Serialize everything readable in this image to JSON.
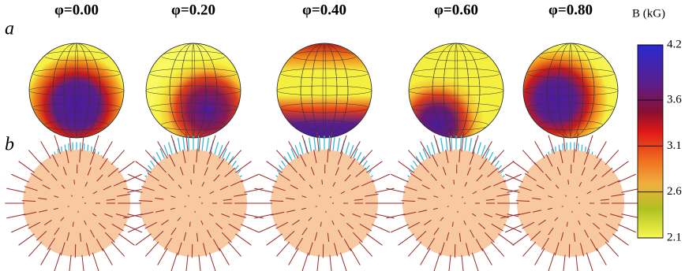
{
  "figure": {
    "phases": [
      "φ=0.00",
      "φ=0.20",
      "φ=0.40",
      "φ=0.60",
      "φ=0.80"
    ],
    "row_labels": [
      "a",
      "b"
    ],
    "colorbar": {
      "title": "B (kG)",
      "lim": [
        2.1,
        4.2
      ],
      "ticks": [
        4.2,
        3.6,
        3.1,
        2.6,
        2.1
      ]
    }
  }
}
